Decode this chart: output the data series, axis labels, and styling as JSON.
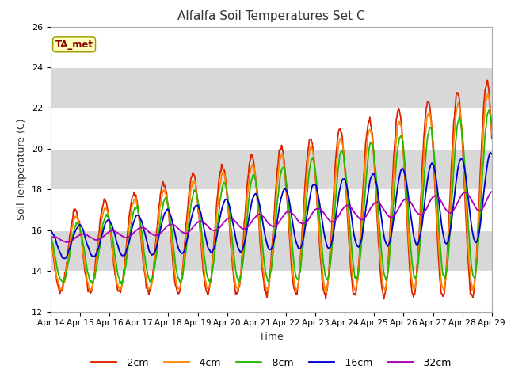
{
  "title": "Alfalfa Soil Temperatures Set C",
  "xlabel": "Time",
  "ylabel": "Soil Temperature (C)",
  "ylim": [
    12,
    26
  ],
  "xlim": [
    0,
    360
  ],
  "colors": {
    "-2cm": "#dd2200",
    "-4cm": "#ff8800",
    "-8cm": "#22bb00",
    "-16cm": "#0000cc",
    "-32cm": "#aa00bb"
  },
  "legend_labels": [
    "-2cm",
    "-4cm",
    "-8cm",
    "-16cm",
    "-32cm"
  ],
  "annotation_text": "TA_met",
  "annotation_bg": "#ffffbb",
  "annotation_border": "#999900",
  "plot_bg": "#d8d8d8",
  "grid_color": "#ffffff",
  "tick_labels": [
    "Apr 14",
    "Apr 15",
    "Apr 16",
    "Apr 17",
    "Apr 18",
    "Apr 19",
    "Apr 20",
    "Apr 21",
    "Apr 22",
    "Apr 23",
    "Apr 24",
    "Apr 25",
    "Apr 26",
    "Apr 27",
    "Apr 28",
    "Apr 29"
  ],
  "tick_positions": [
    0,
    24,
    48,
    72,
    96,
    120,
    144,
    168,
    192,
    216,
    240,
    264,
    288,
    312,
    336,
    360
  ],
  "yticks": [
    12,
    14,
    16,
    18,
    20,
    22,
    24,
    26
  ]
}
